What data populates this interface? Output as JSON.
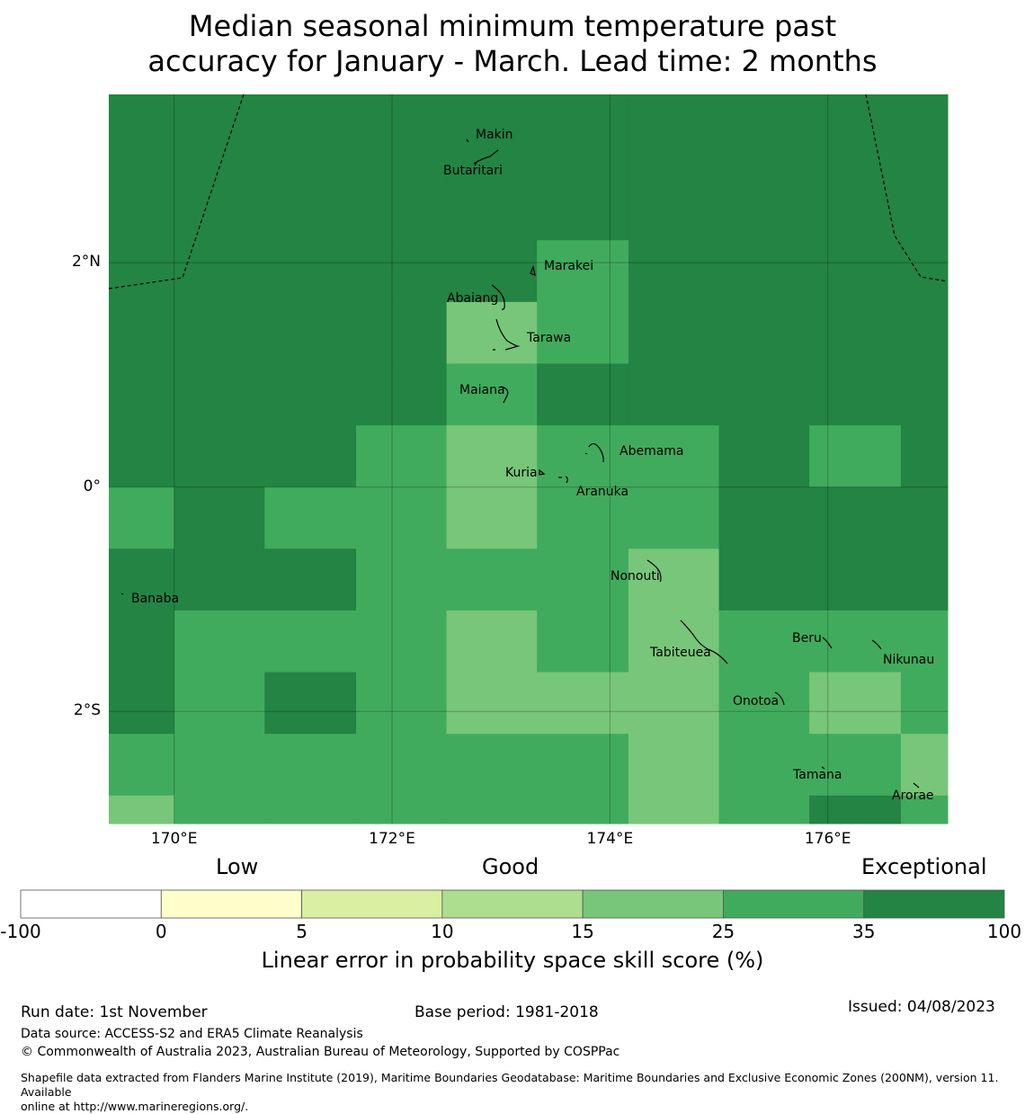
{
  "title_line1": "Median seasonal minimum temperature past",
  "title_line2": "accuracy for January - March. Lead time: 2 months",
  "map": {
    "lon_range": [
      169.4,
      177.1
    ],
    "lat_range": [
      -3.0,
      3.5
    ],
    "lon_ticks": [
      {
        "value": 170,
        "label": "170°E"
      },
      {
        "value": 172,
        "label": "172°E"
      },
      {
        "value": 174,
        "label": "174°E"
      },
      {
        "value": 176,
        "label": "176°E"
      }
    ],
    "lat_ticks": [
      {
        "value": 2,
        "label": "2°N"
      },
      {
        "value": 0,
        "label": "0°"
      },
      {
        "value": -2,
        "label": "2°S"
      }
    ],
    "grid_lon_edges": [
      169.4,
      170.0,
      170.83,
      171.67,
      172.5,
      173.33,
      174.17,
      175.0,
      175.83,
      176.67,
      177.1
    ],
    "grid_lat_edges": [
      3.5,
      2.2,
      1.65,
      1.1,
      0.55,
      0.0,
      -0.55,
      -1.1,
      -1.65,
      -2.2,
      -2.75,
      -3.0
    ],
    "skill_classes": [
      [
        "E",
        "E",
        "E",
        "E",
        "E",
        "E",
        "E",
        "E",
        "E",
        "E"
      ],
      [
        "E",
        "E",
        "E",
        "E",
        "E",
        "G",
        "E",
        "E",
        "E",
        "E"
      ],
      [
        "E",
        "E",
        "E",
        "E",
        "H",
        "G",
        "E",
        "E",
        "E",
        "E"
      ],
      [
        "E",
        "E",
        "E",
        "E",
        "G",
        "E",
        "E",
        "E",
        "E",
        "E"
      ],
      [
        "E",
        "E",
        "E",
        "G",
        "H",
        "G",
        "G",
        "E",
        "G",
        "E"
      ],
      [
        "G",
        "E",
        "G",
        "G",
        "H",
        "G",
        "G",
        "E",
        "E",
        "E"
      ],
      [
        "E",
        "E",
        "E",
        "G",
        "G",
        "G",
        "H",
        "E",
        "E",
        "E"
      ],
      [
        "E",
        "G",
        "G",
        "G",
        "H",
        "G",
        "H",
        "G",
        "G",
        "G"
      ],
      [
        "E",
        "G",
        "E",
        "G",
        "H",
        "H",
        "H",
        "G",
        "H",
        "G"
      ],
      [
        "G",
        "G",
        "G",
        "G",
        "G",
        "G",
        "H",
        "G",
        "G",
        "H"
      ],
      [
        "H",
        "G",
        "G",
        "G",
        "G",
        "G",
        "H",
        "G",
        "E",
        "G"
      ]
    ],
    "class_colors": {
      "E": "#238443",
      "G": "#41ab5d",
      "H": "#78c679"
    },
    "islands": [
      {
        "name": "Makin",
        "lon": 172.95,
        "lat": 3.3
      },
      {
        "name": "Butaritari",
        "lon": 172.75,
        "lat": 3.05
      },
      {
        "name": "Marakei",
        "lon": 173.3,
        "lat": 2.0
      },
      {
        "name": "Abaiang",
        "lon": 172.95,
        "lat": 1.8
      },
      {
        "name": "Tarawa",
        "lon": 173.0,
        "lat": 1.45
      },
      {
        "name": "Maiana",
        "lon": 173.0,
        "lat": 0.95
      },
      {
        "name": "Abemama",
        "lon": 173.85,
        "lat": 0.4
      },
      {
        "name": "Kuria",
        "lon": 173.4,
        "lat": 0.22
      },
      {
        "name": "Aranuka",
        "lon": 173.6,
        "lat": 0.15
      },
      {
        "name": "Nonouti",
        "lon": 174.4,
        "lat": -0.65
      },
      {
        "name": "Banaba",
        "lon": 169.53,
        "lat": -0.87
      },
      {
        "name": "Tabiteuea",
        "lon": 174.85,
        "lat": -1.35
      },
      {
        "name": "Beru",
        "lon": 176.0,
        "lat": -1.3
      },
      {
        "name": "Nikunau",
        "lon": 176.45,
        "lat": -1.35
      },
      {
        "name": "Onotoa",
        "lon": 175.55,
        "lat": -1.85
      },
      {
        "name": "Tamana",
        "lon": 175.98,
        "lat": -2.52
      },
      {
        "name": "Arorae",
        "lon": 176.82,
        "lat": -2.65
      }
    ]
  },
  "colorbar": {
    "category_labels": [
      "Low",
      "Good",
      "Exceptional"
    ],
    "bounds": [
      "-100",
      "0",
      "5",
      "10",
      "15",
      "25",
      "35",
      "100"
    ],
    "colors": [
      "#ffffff",
      "#ffffcc",
      "#d9f0a3",
      "#addd8e",
      "#78c679",
      "#41ab5d",
      "#238443"
    ],
    "title": "Linear error in probability space skill score (%)"
  },
  "footer": {
    "run_date": "Run date: 1st November",
    "base_period": "Base period: 1981-2018",
    "issued": "Issued: 04/08/2023",
    "data_source": "Data source: ACCESS-S2 and ERA5 Climate Reanalysis",
    "copyright": "© Commonwealth of Australia 2023, Australian Bureau of Meteorology, Supported by COSPPac",
    "shapefile_line1": "Shapefile data extracted from Flanders Marine Institute (2019), Maritime Boundaries Geodatabase: Maritime Boundaries and Exclusive Economic Zones (200NM), version 11. Available",
    "shapefile_line2": "online at http://www.marineregions.org/."
  }
}
